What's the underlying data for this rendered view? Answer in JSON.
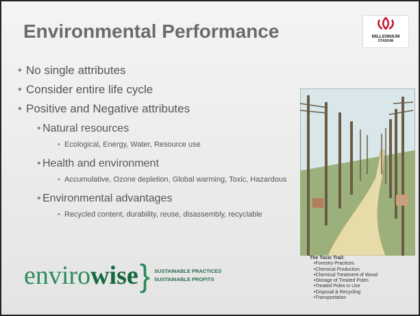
{
  "header": {
    "title": "Environmental Performance",
    "logo": [
      "MILLENNIUM",
      "STADIUM"
    ]
  },
  "bullets": [
    {
      "level": 1,
      "text": "No single attributes"
    },
    {
      "level": 1,
      "text": "Consider entire life cycle"
    },
    {
      "level": 1,
      "text": "Positive and Negative attributes"
    },
    {
      "level": 2,
      "text": "Natural resources"
    },
    {
      "level": 3,
      "text": "Ecological, Energy, Water, Resource use"
    },
    {
      "level": 2,
      "text": "Health and environment"
    },
    {
      "level": 3,
      "text": "Accumulative, Ozone depletion, Global warming, Toxic, Hazardous"
    },
    {
      "level": 2,
      "text": "Environmental advantages"
    },
    {
      "level": 3,
      "text": "Recycled content, durability, reuse, disassembly, recyclable"
    }
  ],
  "caption": {
    "heading": "The Toxic Trail:",
    "items": [
      "Forestry Practices",
      "Chemical Production",
      "Chemical Treatment of Wood",
      "Storage of Treated Poles",
      "Treated Poles in Use",
      "Disposal & Recycling",
      "Transportation"
    ]
  },
  "footer_logo": {
    "part1": "enviro",
    "part2": "wise",
    "taglines": [
      "SUSTAINABLE PRACTICES",
      "SUSTAINABLE PROFITS"
    ]
  }
}
